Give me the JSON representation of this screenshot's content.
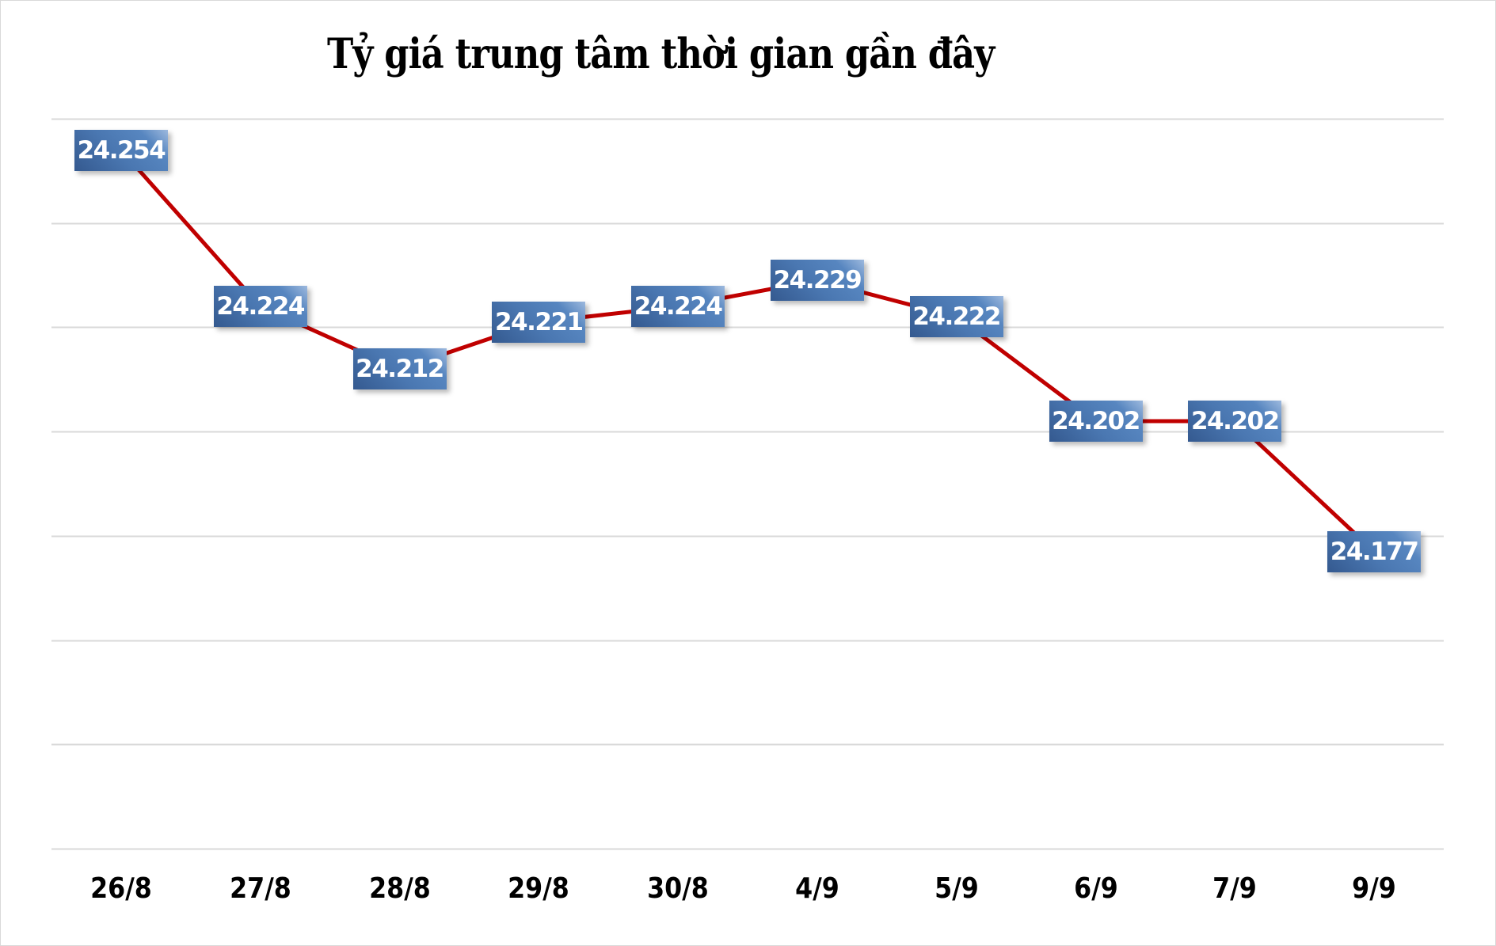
{
  "chart": {
    "title": "Tỷ giá trung tâm thời gian gần đây"
  },
  "chart_data": {
    "type": "line",
    "title": "Tỷ giá trung tâm thời gian gần đây",
    "xlabel": "",
    "ylabel": "",
    "categories": [
      "26/8",
      "27/8",
      "28/8",
      "29/8",
      "30/8",
      "4/9",
      "5/9",
      "6/9",
      "7/9",
      "9/9"
    ],
    "series": [
      {
        "name": "Tỷ giá trung tâm",
        "values": [
          24.254,
          24.224,
          24.212,
          24.221,
          24.224,
          24.229,
          24.222,
          24.202,
          24.202,
          24.177
        ],
        "labels": [
          "24.254",
          "24.224",
          "24.212",
          "24.221",
          "24.224",
          "24.229",
          "24.222",
          "24.202",
          "24.202",
          "24.177"
        ],
        "color": "#c00000"
      }
    ],
    "ylim": [
      24.12,
      24.26
    ],
    "ytick_step": 0.02,
    "y_axis_labels_visible": false,
    "grid": true,
    "legend": "none",
    "data_label_style": {
      "background": "#4a77b1",
      "text_color": "#ffffff"
    }
  }
}
